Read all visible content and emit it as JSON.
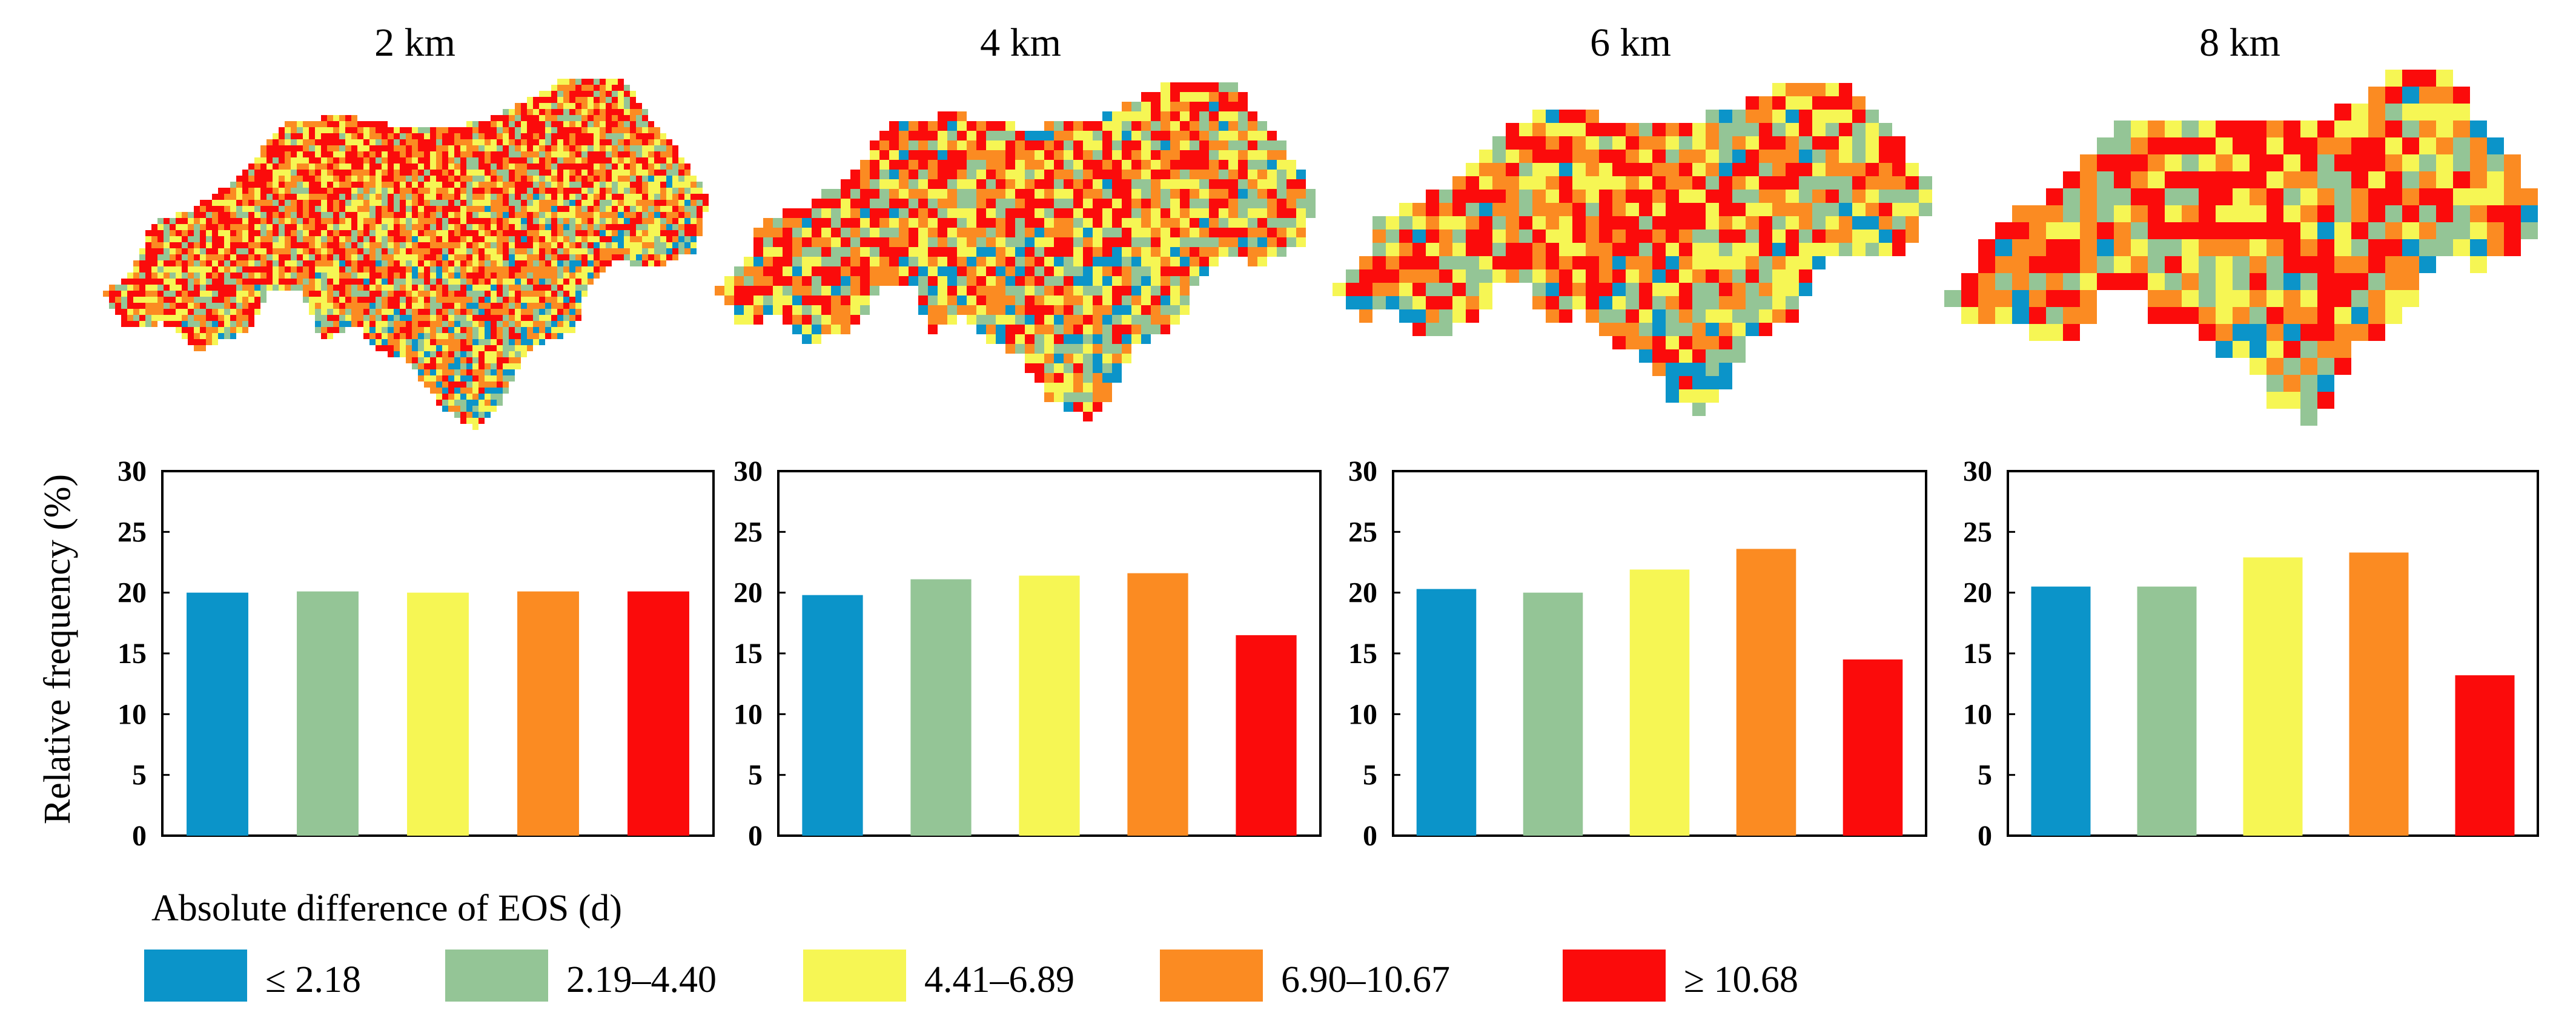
{
  "figure": {
    "y_axis_label": "Relative frequency (%)",
    "legend": {
      "title": "Absolute difference of EOS (d)",
      "items": [
        {
          "label": "≤ 2.18",
          "color": "#0b94c9"
        },
        {
          "label": "2.19–4.40",
          "color": "#94c596"
        },
        {
          "label": "4.41–6.89",
          "color": "#f6f654"
        },
        {
          "label": "6.90–10.67",
          "color": "#fb8b22"
        },
        {
          "label": "≥ 10.68",
          "color": "#fb0b0b"
        }
      ]
    }
  },
  "chart_data": [
    {
      "type": "bar",
      "title": "2 km",
      "categories": [
        "≤ 2.18",
        "2.19–4.40",
        "4.41–6.89",
        "6.90–10.67",
        "≥ 10.68"
      ],
      "values": [
        20.0,
        20.1,
        20.0,
        20.1,
        20.1
      ],
      "ylabel": "Relative frequency (%)",
      "ylim": [
        0,
        30
      ],
      "yticks": [
        0,
        5,
        10,
        15,
        20,
        25,
        30
      ]
    },
    {
      "type": "bar",
      "title": "4 km",
      "categories": [
        "≤ 2.18",
        "2.19–4.40",
        "4.41–6.89",
        "6.90–10.67",
        "≥ 10.68"
      ],
      "values": [
        19.8,
        21.1,
        21.4,
        21.6,
        16.5
      ],
      "ylim": [
        0,
        30
      ],
      "yticks": [
        0,
        5,
        10,
        15,
        20,
        25,
        30
      ]
    },
    {
      "type": "bar",
      "title": "6 km",
      "categories": [
        "≤ 2.18",
        "2.19–4.40",
        "4.41–6.89",
        "6.90–10.67",
        "≥ 10.68"
      ],
      "values": [
        20.3,
        20.0,
        21.9,
        23.6,
        14.5
      ],
      "ylim": [
        0,
        30
      ],
      "yticks": [
        0,
        5,
        10,
        15,
        20,
        25,
        30
      ]
    },
    {
      "type": "bar",
      "title": "8 km",
      "categories": [
        "≤ 2.18",
        "2.19–4.40",
        "4.41–6.89",
        "6.90–10.67",
        "≥ 10.68"
      ],
      "values": [
        20.5,
        20.5,
        22.9,
        23.3,
        13.2
      ],
      "ylim": [
        0,
        30
      ],
      "yticks": [
        0,
        5,
        10,
        15,
        20,
        25,
        30
      ]
    }
  ]
}
